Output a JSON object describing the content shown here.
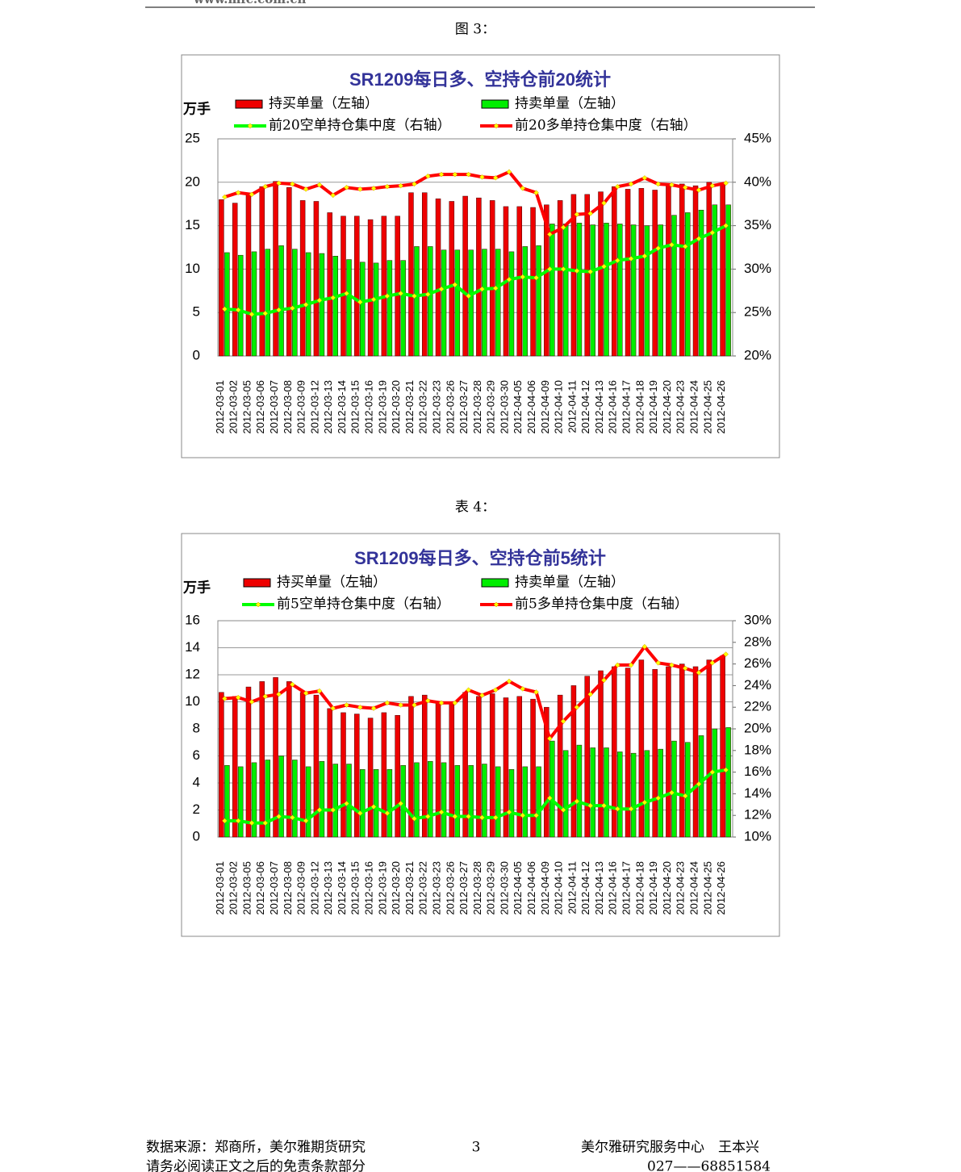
{
  "header": {
    "url": "www.mfc.com.cn"
  },
  "captions": [
    "图 3：",
    "表 4："
  ],
  "chart_data": [
    {
      "type": "combo",
      "title": "SR1209每日多、空持仓前20统计",
      "y_label": "万手",
      "categories": [
        "2012-03-01",
        "2012-03-02",
        "2012-03-05",
        "2012-03-06",
        "2012-03-07",
        "2012-03-08",
        "2012-03-09",
        "2012-03-12",
        "2012-03-13",
        "2012-03-14",
        "2012-03-15",
        "2012-03-16",
        "2012-03-19",
        "2012-03-20",
        "2012-03-21",
        "2012-03-22",
        "2012-03-23",
        "2012-03-26",
        "2012-03-27",
        "2012-03-28",
        "2012-03-29",
        "2012-03-30",
        "2012-04-05",
        "2012-04-06",
        "2012-04-09",
        "2012-04-10",
        "2012-04-11",
        "2012-04-12",
        "2012-04-13",
        "2012-04-16",
        "2012-04-17",
        "2012-04-18",
        "2012-04-19",
        "2012-04-20",
        "2012-04-23",
        "2012-04-24",
        "2012-04-25",
        "2012-04-26"
      ],
      "ylim": [
        0,
        25
      ],
      "yticks": [
        0,
        5,
        10,
        15,
        20,
        25
      ],
      "y2lim": [
        20,
        45
      ],
      "y2ticks": [
        {
          "value": 20,
          "label": "20%"
        },
        {
          "value": 25,
          "label": "25%"
        },
        {
          "value": 30,
          "label": "30%"
        },
        {
          "value": 35,
          "label": "35%"
        },
        {
          "value": 40,
          "label": "40%"
        },
        {
          "value": 45,
          "label": "45%"
        }
      ],
      "grid": true,
      "series": [
        {
          "name": "持买单量（左轴）",
          "type": "bar",
          "color": "#ee0000",
          "values": [
            18.0,
            17.6,
            18.7,
            19.5,
            20.1,
            19.4,
            17.9,
            17.8,
            16.5,
            16.1,
            16.1,
            15.7,
            16.1,
            16.1,
            18.8,
            18.8,
            18.1,
            17.8,
            18.4,
            18.2,
            17.9,
            17.2,
            17.2,
            17.1,
            17.4,
            17.9,
            18.6,
            18.6,
            18.9,
            19.5,
            19.2,
            19.3,
            19.1,
            19.7,
            19.8,
            19.6,
            20.0,
            19.9
          ]
        },
        {
          "name": "持卖单量（左轴）",
          "type": "bar",
          "color": "#00ee00",
          "values": [
            11.9,
            11.6,
            12.0,
            12.3,
            12.7,
            12.3,
            11.9,
            11.8,
            11.5,
            11.1,
            10.8,
            10.7,
            11.0,
            11.0,
            12.6,
            12.6,
            12.2,
            12.2,
            12.2,
            12.3,
            12.3,
            12.0,
            12.6,
            12.7,
            15.2,
            15.2,
            15.3,
            15.1,
            15.3,
            15.2,
            15.1,
            15.0,
            15.1,
            16.2,
            16.5,
            16.8,
            17.4,
            17.4
          ]
        },
        {
          "name": "前20空单持仓集中度（右轴）",
          "type": "line",
          "axis": "y2",
          "color": "#00ff00",
          "values": [
            25.4,
            25.3,
            24.8,
            24.9,
            25.3,
            25.5,
            25.9,
            26.4,
            26.7,
            27.2,
            26.2,
            26.5,
            26.9,
            27.2,
            26.9,
            27.1,
            27.7,
            28.2,
            26.9,
            27.7,
            27.8,
            28.8,
            29.1,
            29.0,
            30.0,
            30.0,
            29.8,
            29.7,
            30.3,
            31.0,
            31.2,
            31.5,
            32.4,
            32.8,
            32.6,
            33.5,
            34.2,
            35.0
          ]
        },
        {
          "name": "前20多单持仓集中度（右轴）",
          "type": "line",
          "axis": "y2",
          "color": "#ff0000",
          "values": [
            38.3,
            38.8,
            38.6,
            39.5,
            39.9,
            39.8,
            39.2,
            39.7,
            38.5,
            39.4,
            39.2,
            39.3,
            39.5,
            39.6,
            39.8,
            40.7,
            40.9,
            40.9,
            40.9,
            40.6,
            40.5,
            41.2,
            39.3,
            38.8,
            34.0,
            34.8,
            36.3,
            36.4,
            37.6,
            39.5,
            39.8,
            40.5,
            39.8,
            39.7,
            39.4,
            39.1,
            39.6,
            39.9
          ]
        }
      ]
    },
    {
      "type": "combo",
      "title": "SR1209每日多、空持仓前5统计",
      "y_label": "万手",
      "categories": [
        "2012-03-01",
        "2012-03-02",
        "2012-03-05",
        "2012-03-06",
        "2012-03-07",
        "2012-03-08",
        "2012-03-09",
        "2012-03-12",
        "2012-03-13",
        "2012-03-14",
        "2012-03-15",
        "2012-03-16",
        "2012-03-19",
        "2012-03-20",
        "2012-03-21",
        "2012-03-22",
        "2012-03-23",
        "2012-03-26",
        "2012-03-27",
        "2012-03-28",
        "2012-03-29",
        "2012-03-30",
        "2012-04-05",
        "2012-04-06",
        "2012-04-09",
        "2012-04-10",
        "2012-04-11",
        "2012-04-12",
        "2012-04-13",
        "2012-04-16",
        "2012-04-17",
        "2012-04-18",
        "2012-04-19",
        "2012-04-20",
        "2012-04-23",
        "2012-04-24",
        "2012-04-25",
        "2012-04-26"
      ],
      "ylim": [
        0,
        16
      ],
      "yticks": [
        0,
        2,
        4,
        6,
        8,
        10,
        12,
        14,
        16
      ],
      "y2lim": [
        10,
        30
      ],
      "y2ticks": [
        {
          "value": 10,
          "label": "10%"
        },
        {
          "value": 12,
          "label": "12%"
        },
        {
          "value": 14,
          "label": "14%"
        },
        {
          "value": 16,
          "label": "16%"
        },
        {
          "value": 18,
          "label": "18%"
        },
        {
          "value": 20,
          "label": "20%"
        },
        {
          "value": 22,
          "label": "22%"
        },
        {
          "value": 24,
          "label": "24%"
        },
        {
          "value": 26,
          "label": "26%"
        },
        {
          "value": 28,
          "label": "28%"
        },
        {
          "value": 30,
          "label": "30%"
        }
      ],
      "grid": true,
      "series": [
        {
          "name": "持买单量（左轴）",
          "type": "bar",
          "color": "#ee0000",
          "values": [
            10.7,
            10.4,
            11.1,
            11.5,
            11.8,
            11.5,
            10.7,
            10.5,
            9.5,
            9.2,
            9.1,
            8.8,
            9.2,
            9.0,
            10.4,
            10.5,
            10.0,
            10.0,
            10.7,
            10.4,
            10.6,
            10.3,
            10.4,
            10.2,
            9.6,
            10.5,
            11.2,
            11.9,
            12.3,
            12.6,
            12.5,
            13.1,
            12.4,
            12.6,
            12.8,
            12.6,
            13.1,
            13.4
          ]
        },
        {
          "name": "持卖单量（左轴）",
          "type": "bar",
          "color": "#00ee00",
          "values": [
            5.3,
            5.2,
            5.5,
            5.7,
            6.0,
            5.7,
            5.2,
            5.6,
            5.4,
            5.4,
            5.0,
            5.0,
            5.0,
            5.3,
            5.5,
            5.6,
            5.5,
            5.3,
            5.3,
            5.4,
            5.2,
            5.0,
            5.2,
            5.2,
            7.1,
            6.4,
            6.8,
            6.6,
            6.6,
            6.3,
            6.2,
            6.4,
            6.5,
            7.1,
            7.0,
            7.5,
            8.0,
            8.1
          ]
        },
        {
          "name": "前5空单持仓集中度（右轴）",
          "type": "line",
          "axis": "y2",
          "color": "#00ff00",
          "values": [
            11.5,
            11.5,
            11.3,
            11.3,
            11.9,
            11.8,
            11.5,
            12.5,
            12.5,
            13.1,
            12.2,
            12.8,
            12.2,
            13.1,
            11.7,
            11.9,
            12.3,
            11.9,
            11.9,
            11.8,
            11.8,
            12.3,
            12.0,
            12.0,
            13.6,
            12.5,
            13.3,
            12.9,
            12.9,
            12.6,
            12.6,
            13.2,
            13.6,
            14.1,
            13.8,
            14.9,
            16.0,
            16.2
          ]
        },
        {
          "name": "前5多单持仓集中度（右轴）",
          "type": "line",
          "axis": "y2",
          "color": "#ff0000",
          "values": [
            22.8,
            22.9,
            22.5,
            23.0,
            23.2,
            24.1,
            23.3,
            23.5,
            21.9,
            22.2,
            22.0,
            21.9,
            22.4,
            22.2,
            22.2,
            22.6,
            22.4,
            22.4,
            23.6,
            23.1,
            23.6,
            24.4,
            23.7,
            23.4,
            19.1,
            20.7,
            22.0,
            23.2,
            24.5,
            25.9,
            25.9,
            27.6,
            26.1,
            25.9,
            25.6,
            25.2,
            26.1,
            26.9
          ]
        }
      ]
    }
  ],
  "footer": {
    "source": "数据来源：郑商所，美尔雅期货研究",
    "page": "3",
    "center": "美尔雅研究服务中心　王本兴",
    "disclaimer": "请务必阅读正文之后的免责条款部分",
    "phone": "027——68851584"
  }
}
